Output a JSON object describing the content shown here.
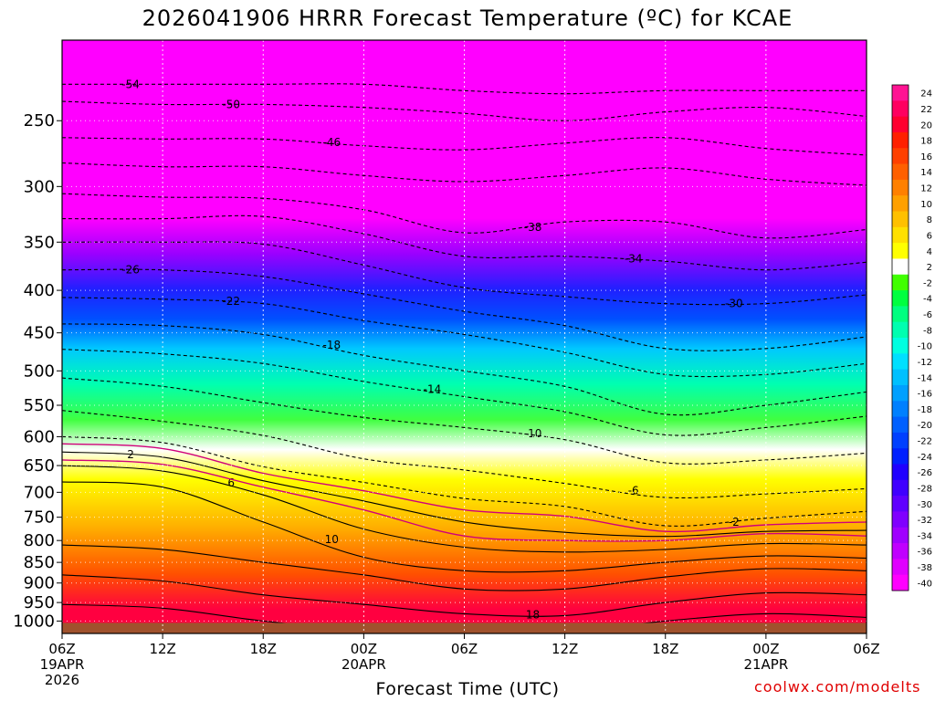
{
  "chart_data": {
    "type": "heatmap",
    "title": "2026041906 HRRR Forecast Temperature (ºC) for KCAE",
    "xlabel": "Forecast Time (UTC)",
    "ylabel": "",
    "credit": "coolwx.com/modelts",
    "x_ticks": [
      {
        "hour": 0,
        "label": "06Z",
        "sub1": "19APR",
        "sub2": "2026"
      },
      {
        "hour": 6,
        "label": "12Z",
        "sub1": "",
        "sub2": ""
      },
      {
        "hour": 12,
        "label": "18Z",
        "sub1": "",
        "sub2": ""
      },
      {
        "hour": 18,
        "label": "00Z",
        "sub1": "20APR",
        "sub2": ""
      },
      {
        "hour": 24,
        "label": "06Z",
        "sub1": "",
        "sub2": ""
      },
      {
        "hour": 30,
        "label": "12Z",
        "sub1": "",
        "sub2": ""
      },
      {
        "hour": 36,
        "label": "18Z",
        "sub1": "",
        "sub2": ""
      },
      {
        "hour": 42,
        "label": "00Z",
        "sub1": "21APR",
        "sub2": ""
      },
      {
        "hour": 48,
        "label": "06Z",
        "sub1": "",
        "sub2": ""
      }
    ],
    "xlim": [
      0,
      48
    ],
    "y_levels": [
      "250",
      "300",
      "350",
      "400",
      "450",
      "500",
      "550",
      "600",
      "650",
      "700",
      "750",
      "800",
      "850",
      "900",
      "950",
      "1000"
    ],
    "ylim": [
      200,
      1035
    ],
    "y_scale": "log",
    "colorbar": {
      "labels": [
        "24",
        "22",
        "20",
        "18",
        "16",
        "14",
        "12",
        "10",
        "8",
        "6",
        "4",
        "2",
        "-2",
        "-4",
        "-6",
        "-8",
        "-10",
        "-12",
        "-14",
        "-16",
        "-18",
        "-20",
        "-22",
        "-24",
        "-26",
        "-28",
        "-30",
        "-32",
        "-34",
        "-36",
        "-38",
        "-40"
      ]
    },
    "contours": [
      {
        "temp": -54,
        "label": "-54",
        "hours": [
          0,
          6,
          12,
          18,
          24,
          30,
          36,
          42,
          48
        ],
        "pressures": [
          226,
          226,
          226,
          226,
          230,
          232,
          230,
          230,
          230
        ]
      },
      {
        "temp": -50,
        "label": "-50",
        "hours": [
          0,
          6,
          12,
          18,
          24,
          30,
          36,
          42,
          48
        ],
        "pressures": [
          237,
          239,
          239,
          241,
          245,
          250,
          244,
          241,
          247
        ]
      },
      {
        "temp": -46,
        "label": "-46",
        "hours": [
          0,
          6,
          12,
          18,
          24,
          30,
          36,
          42,
          48
        ],
        "pressures": [
          262,
          263,
          263,
          268,
          271,
          266,
          262,
          270,
          275
        ]
      },
      {
        "temp": -42,
        "label": "",
        "hours": [
          0,
          6,
          12,
          18,
          24,
          30,
          36,
          42,
          48
        ],
        "pressures": [
          281,
          284,
          284,
          291,
          296,
          291,
          285,
          294,
          299
        ]
      },
      {
        "temp": -38,
        "label": "-38",
        "hours": [
          0,
          6,
          12,
          18,
          24,
          30,
          36,
          42,
          48
        ],
        "pressures": [
          306,
          309,
          310,
          320,
          341,
          331,
          331,
          346,
          338
        ]
      },
      {
        "temp": -34,
        "label": "-34",
        "hours": [
          0,
          6,
          12,
          18,
          24,
          30,
          36,
          42,
          48
        ],
        "pressures": [
          328,
          328,
          326,
          342,
          364,
          364,
          369,
          378,
          370
        ]
      },
      {
        "temp": -30,
        "label": "-30",
        "hours": [
          0,
          6,
          12,
          18,
          24,
          30,
          36,
          42,
          48
        ],
        "pressures": [
          350,
          350,
          352,
          373,
          397,
          407,
          415,
          415,
          405
        ]
      },
      {
        "temp": -26,
        "label": "-26",
        "hours": [
          0,
          6,
          12,
          18,
          24,
          30,
          36,
          42,
          48
        ],
        "pressures": [
          378,
          378,
          385,
          404,
          424,
          441,
          470,
          470,
          455
        ]
      },
      {
        "temp": -22,
        "label": "-22",
        "hours": [
          0,
          6,
          12,
          18,
          24,
          30,
          36,
          42,
          48
        ],
        "pressures": [
          408,
          410,
          415,
          435,
          452,
          475,
          505,
          505,
          490
        ]
      },
      {
        "temp": -18,
        "label": "-18",
        "hours": [
          0,
          6,
          12,
          18,
          24,
          30,
          36,
          42,
          48
        ],
        "pressures": [
          439,
          441,
          452,
          479,
          500,
          522,
          564,
          550,
          530
        ]
      },
      {
        "temp": -14,
        "label": "-14",
        "hours": [
          0,
          6,
          12,
          18,
          24,
          30,
          36,
          42,
          48
        ],
        "pressures": [
          471,
          477,
          490,
          515,
          537,
          560,
          597,
          585,
          567
        ]
      },
      {
        "temp": -10,
        "label": "-10",
        "hours": [
          0,
          6,
          12,
          18,
          24,
          30,
          36,
          42,
          48
        ],
        "pressures": [
          510,
          522,
          546,
          569,
          585,
          605,
          645,
          640,
          628
        ]
      },
      {
        "temp": -6,
        "label": "-6",
        "hours": [
          0,
          6,
          12,
          18,
          24,
          30,
          36,
          42,
          48
        ],
        "pressures": [
          558,
          575,
          598,
          638,
          658,
          683,
          710,
          703,
          693
        ]
      },
      {
        "temp": -2,
        "label": "-2",
        "hours": [
          0,
          6,
          12,
          18,
          24,
          30,
          36,
          42,
          48
        ],
        "pressures": [
          600,
          610,
          652,
          681,
          712,
          728,
          768,
          752,
          738
        ]
      },
      {
        "temp": 2,
        "label": "2",
        "hours": [
          0,
          6,
          12,
          18,
          24,
          30,
          36,
          42,
          48
        ],
        "pressures": [
          626,
          635,
          678,
          717,
          760,
          782,
          791,
          780,
          778
        ]
      },
      {
        "temp": 6,
        "label": "6",
        "hours": [
          0,
          6,
          12,
          18,
          24,
          30,
          36,
          42,
          48
        ],
        "pressures": [
          650,
          660,
          705,
          775,
          815,
          826,
          820,
          807,
          810
        ]
      },
      {
        "temp": 10,
        "label": "10",
        "hours": [
          0,
          6,
          12,
          18,
          24,
          30,
          36,
          42,
          48
        ],
        "pressures": [
          680,
          690,
          760,
          838,
          870,
          870,
          850,
          835,
          840
        ]
      },
      {
        "temp": 14,
        "label": "",
        "hours": [
          0,
          6,
          12,
          18,
          24,
          30,
          36,
          42,
          48
        ],
        "pressures": [
          810,
          820,
          850,
          880,
          915,
          915,
          885,
          865,
          870
        ]
      },
      {
        "temp": 18,
        "label": "18",
        "hours": [
          0,
          6,
          12,
          18,
          24,
          30,
          36,
          42,
          48
        ],
        "pressures": [
          880,
          895,
          930,
          955,
          980,
          985,
          950,
          925,
          930
        ]
      },
      {
        "temp": 22,
        "label": "",
        "hours": [
          0,
          6,
          12,
          18,
          24,
          30,
          36,
          42,
          48
        ],
        "pressures": [
          955,
          965,
          1000,
          1025,
          1030,
          1030,
          1000,
          980,
          990
        ]
      }
    ],
    "freezing_lines": [
      {
        "temp": 0,
        "hours": [
          0,
          6,
          12,
          18,
          24,
          30,
          36,
          42,
          48
        ],
        "pressures": [
          612,
          620,
          664,
          697,
          735,
          748,
          780,
          766,
          760
        ]
      },
      {
        "temp": 0,
        "hours": [
          0,
          6,
          12,
          18,
          24,
          30,
          36,
          42,
          48
        ],
        "pressures": [
          640,
          648,
          690,
          735,
          790,
          800,
          800,
          785,
          790
        ]
      }
    ],
    "surface_pressure": 1000
  }
}
